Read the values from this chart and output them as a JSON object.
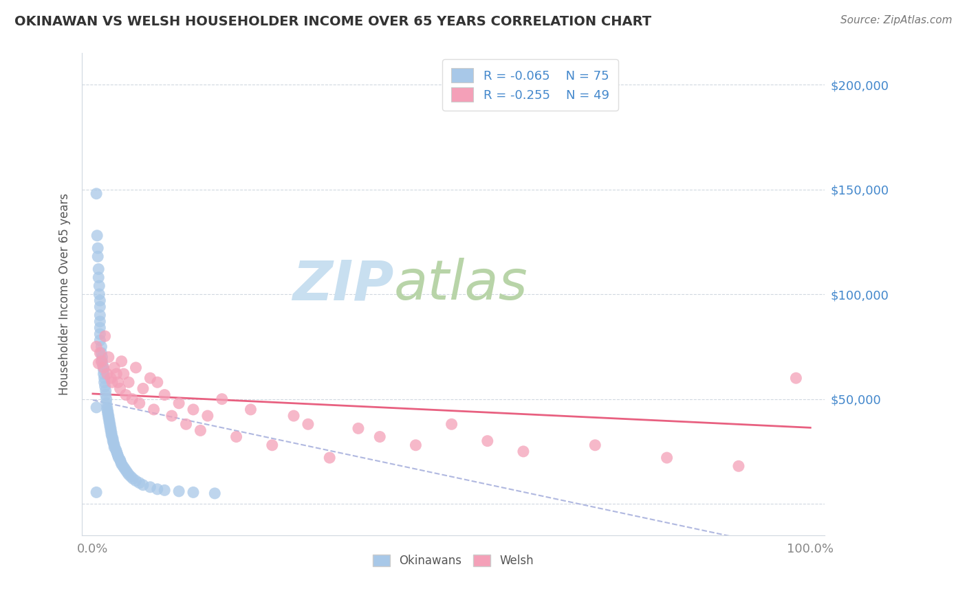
{
  "title": "OKINAWAN VS WELSH HOUSEHOLDER INCOME OVER 65 YEARS CORRELATION CHART",
  "source": "Source: ZipAtlas.com",
  "ylabel": "Householder Income Over 65 years",
  "legend_r1": "R = -0.065",
  "legend_n1": "N = 75",
  "legend_r2": "R = -0.255",
  "legend_n2": "N = 49",
  "okinawan_color": "#a8c8e8",
  "welsh_color": "#f4a0b8",
  "okinawan_line_color": "#b0b8e0",
  "welsh_line_color": "#e86080",
  "grid_color": "#d0d8e0",
  "title_color": "#333333",
  "axis_color": "#888888",
  "right_label_color": "#4488cc",
  "background_color": "#ffffff",
  "watermark_zip_color": "#c8dff0",
  "watermark_atlas_color": "#b8d4a8",
  "ylim_min": -15000,
  "ylim_max": 215000,
  "yticks": [
    0,
    50000,
    100000,
    150000,
    200000
  ],
  "okinawan_x": [
    0.005,
    0.006,
    0.007,
    0.007,
    0.008,
    0.008,
    0.009,
    0.009,
    0.01,
    0.01,
    0.01,
    0.01,
    0.01,
    0.01,
    0.01,
    0.012,
    0.012,
    0.013,
    0.013,
    0.014,
    0.015,
    0.015,
    0.016,
    0.016,
    0.017,
    0.018,
    0.018,
    0.019,
    0.019,
    0.02,
    0.02,
    0.021,
    0.021,
    0.022,
    0.022,
    0.023,
    0.023,
    0.024,
    0.024,
    0.025,
    0.025,
    0.026,
    0.026,
    0.027,
    0.028,
    0.028,
    0.029,
    0.03,
    0.03,
    0.032,
    0.033,
    0.034,
    0.035,
    0.036,
    0.038,
    0.039,
    0.04,
    0.042,
    0.044,
    0.046,
    0.048,
    0.05,
    0.053,
    0.056,
    0.06,
    0.065,
    0.07,
    0.08,
    0.09,
    0.1,
    0.12,
    0.14,
    0.17,
    0.005,
    0.005
  ],
  "okinawan_y": [
    148000,
    128000,
    122000,
    118000,
    112000,
    108000,
    104000,
    100000,
    97000,
    94000,
    90000,
    87000,
    84000,
    81000,
    78000,
    75000,
    72000,
    70000,
    68000,
    66000,
    64000,
    62000,
    60000,
    58000,
    56000,
    54000,
    52000,
    50000,
    48000,
    46000,
    45000,
    44000,
    43000,
    42000,
    41000,
    40000,
    39000,
    38000,
    37000,
    36000,
    35000,
    34000,
    33000,
    32000,
    31000,
    30000,
    29000,
    28000,
    27000,
    26000,
    25000,
    24000,
    23000,
    22000,
    21000,
    20000,
    19000,
    18000,
    17000,
    16000,
    15000,
    14000,
    13000,
    12000,
    11000,
    10000,
    9000,
    8000,
    7000,
    6500,
    6000,
    5500,
    5000,
    46000,
    5500
  ],
  "welsh_x": [
    0.005,
    0.008,
    0.01,
    0.012,
    0.015,
    0.017,
    0.02,
    0.022,
    0.025,
    0.027,
    0.03,
    0.033,
    0.035,
    0.038,
    0.04,
    0.043,
    0.046,
    0.05,
    0.055,
    0.06,
    0.065,
    0.07,
    0.08,
    0.085,
    0.09,
    0.1,
    0.11,
    0.12,
    0.13,
    0.14,
    0.15,
    0.16,
    0.18,
    0.2,
    0.22,
    0.25,
    0.28,
    0.3,
    0.33,
    0.37,
    0.4,
    0.45,
    0.5,
    0.55,
    0.6,
    0.7,
    0.8,
    0.9,
    0.98
  ],
  "welsh_y": [
    75000,
    67000,
    72000,
    68000,
    65000,
    80000,
    62000,
    70000,
    60000,
    58000,
    65000,
    62000,
    58000,
    55000,
    68000,
    62000,
    52000,
    58000,
    50000,
    65000,
    48000,
    55000,
    60000,
    45000,
    58000,
    52000,
    42000,
    48000,
    38000,
    45000,
    35000,
    42000,
    50000,
    32000,
    45000,
    28000,
    42000,
    38000,
    22000,
    36000,
    32000,
    28000,
    38000,
    30000,
    25000,
    28000,
    22000,
    18000,
    60000
  ]
}
